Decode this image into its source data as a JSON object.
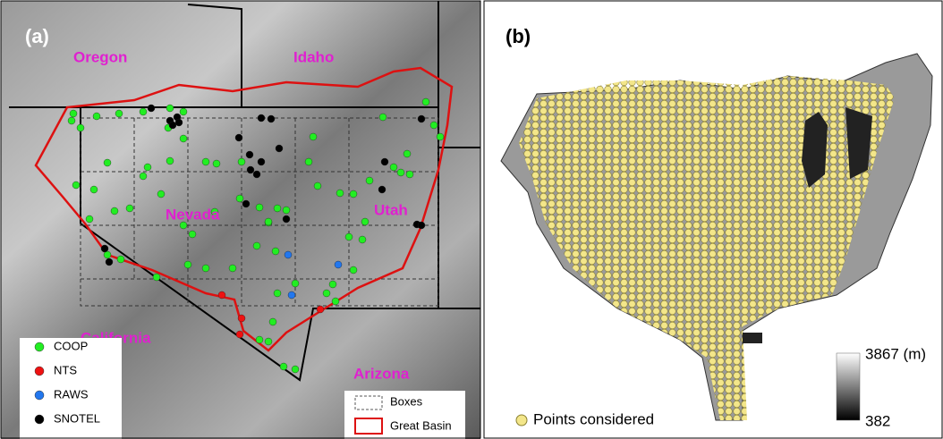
{
  "panel_a": {
    "label": "(a)",
    "states": [
      "Oregon",
      "Idaho",
      "Nevada",
      "Utah",
      "California",
      "Arizona"
    ],
    "legend": [
      {
        "name": "COOP",
        "color": "#22ee22"
      },
      {
        "name": "NTS",
        "color": "#ee1111"
      },
      {
        "name": "RAWS",
        "color": "#2277ee"
      },
      {
        "name": "SNOTEL",
        "color": "#000000"
      }
    ],
    "legend2": [
      "Boxes",
      "Great Basin"
    ]
  },
  "panel_b": {
    "label": "(b)",
    "legend": "Points considered",
    "colorbar": {
      "max": "3867 (m)",
      "min": "382"
    }
  }
}
